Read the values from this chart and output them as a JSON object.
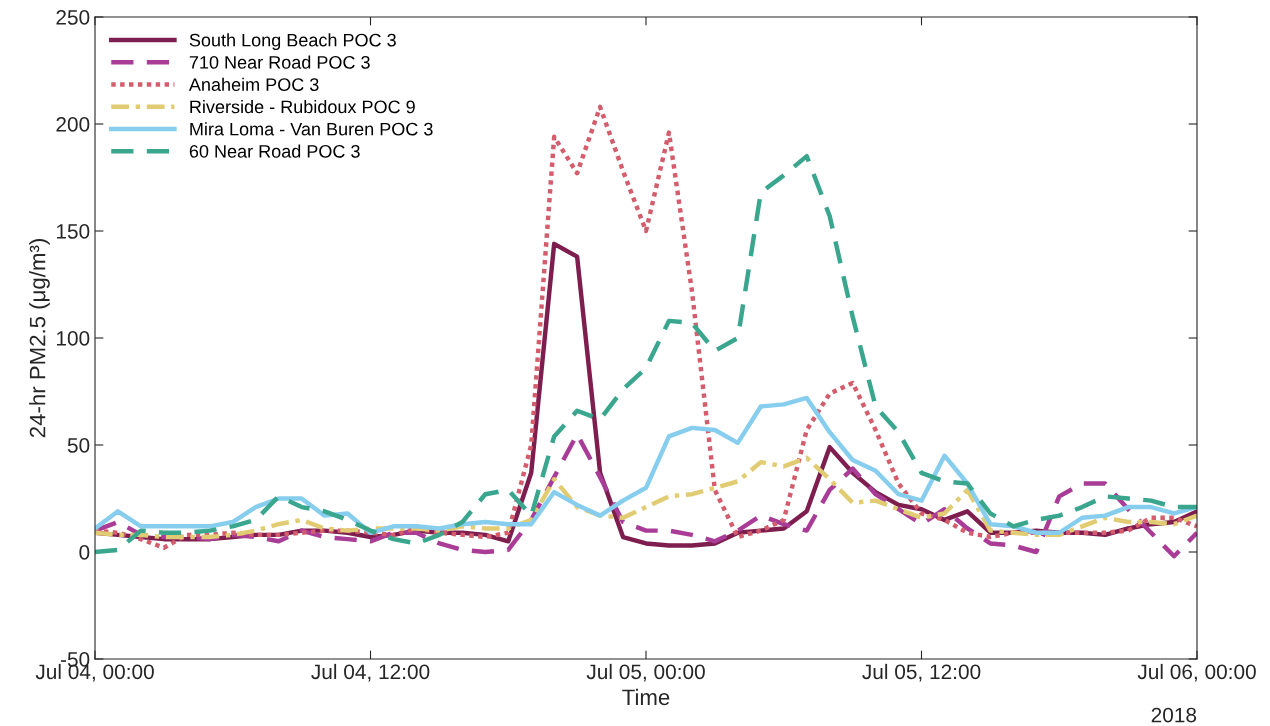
{
  "chart_data": {
    "type": "line",
    "xlabel": "Time",
    "ylabel": "24-hr PM2.5 (μg/m³)",
    "x": [
      "2018-07-04T00:00",
      "2018-07-04T01:00",
      "2018-07-04T02:00",
      "2018-07-04T03:00",
      "2018-07-04T04:00",
      "2018-07-04T05:00",
      "2018-07-04T06:00",
      "2018-07-04T07:00",
      "2018-07-04T08:00",
      "2018-07-04T09:00",
      "2018-07-04T10:00",
      "2018-07-04T11:00",
      "2018-07-04T12:00",
      "2018-07-04T13:00",
      "2018-07-04T14:00",
      "2018-07-04T15:00",
      "2018-07-04T16:00",
      "2018-07-04T17:00",
      "2018-07-04T18:00",
      "2018-07-04T19:00",
      "2018-07-04T20:00",
      "2018-07-04T21:00",
      "2018-07-04T22:00",
      "2018-07-04T23:00",
      "2018-07-05T00:00",
      "2018-07-05T01:00",
      "2018-07-05T02:00",
      "2018-07-05T03:00",
      "2018-07-05T04:00",
      "2018-07-05T05:00",
      "2018-07-05T06:00",
      "2018-07-05T07:00",
      "2018-07-05T08:00",
      "2018-07-05T09:00",
      "2018-07-05T10:00",
      "2018-07-05T11:00",
      "2018-07-05T12:00",
      "2018-07-05T13:00",
      "2018-07-05T14:00",
      "2018-07-05T15:00",
      "2018-07-05T16:00",
      "2018-07-05T17:00",
      "2018-07-05T18:00",
      "2018-07-05T19:00",
      "2018-07-05T20:00",
      "2018-07-05T21:00",
      "2018-07-05T22:00",
      "2018-07-05T23:00",
      "2018-07-06T00:00"
    ],
    "series": [
      {
        "name": "South Long Beach POC 3",
        "color": "#7e1e4f",
        "line_style": "solid",
        "values": [
          9,
          8,
          7,
          6,
          6,
          6,
          7,
          8,
          8,
          10,
          10,
          9,
          7,
          8,
          10,
          9,
          9,
          8,
          5,
          37,
          144,
          138,
          37,
          7,
          4,
          3,
          3,
          4,
          9,
          10,
          11,
          19,
          49,
          37,
          28,
          22,
          20,
          15,
          19,
          9,
          9,
          10,
          9,
          9,
          8,
          11,
          13,
          14,
          19
        ]
      },
      {
        "name": "710 Near Road POC 3",
        "color": "#a83c96",
        "line_style": "dashed",
        "values": [
          10,
          14,
          8,
          7,
          7,
          6,
          8,
          7,
          5,
          10,
          7,
          6,
          5,
          9,
          9,
          4,
          1,
          0,
          1,
          15,
          35,
          55,
          35,
          14,
          10,
          10,
          8,
          5,
          10,
          17,
          13,
          10,
          29,
          39,
          27,
          20,
          13,
          20,
          11,
          4,
          3,
          0,
          26,
          32,
          32,
          20,
          9,
          -2,
          9
        ]
      },
      {
        "name": "Anaheim POC 3",
        "color": "#d45d6d",
        "line_style": "dotted",
        "values": [
          10,
          9,
          6,
          2,
          8,
          8,
          9,
          8,
          8,
          9,
          10,
          10,
          9,
          8,
          11,
          9,
          8,
          7,
          9,
          50,
          194,
          177,
          208,
          178,
          150,
          196,
          122,
          29,
          7,
          10,
          15,
          57,
          74,
          79,
          57,
          32,
          18,
          15,
          9,
          7,
          9,
          9,
          9,
          9,
          9,
          10,
          16,
          16,
          12
        ]
      },
      {
        "name": "Riverside - Rubidoux POC 9",
        "color": "#e2cc73",
        "line_style": "dashdot",
        "values": [
          9,
          8,
          8,
          7,
          7,
          7,
          8,
          10,
          13,
          15,
          11,
          10,
          11,
          11,
          11,
          10,
          12,
          11,
          11,
          15,
          34,
          21,
          17,
          16,
          21,
          26,
          27,
          30,
          33,
          42,
          40,
          44,
          34,
          23,
          24,
          20,
          16,
          18,
          29,
          10,
          9,
          8,
          8,
          12,
          16,
          14,
          14,
          13,
          17
        ]
      },
      {
        "name": "Mira Loma - Van Buren POC 3",
        "color": "#86cdee",
        "line_style": "solid",
        "values": [
          11,
          19,
          12,
          12,
          12,
          12,
          14,
          21,
          25,
          25,
          17,
          18,
          9,
          12,
          12,
          11,
          13,
          14,
          13,
          13,
          28,
          22,
          17,
          24,
          30,
          54,
          58,
          57,
          51,
          68,
          69,
          72,
          56,
          43,
          38,
          27,
          24,
          45,
          32,
          13,
          12,
          9,
          9,
          16,
          17,
          21,
          21,
          18,
          21
        ]
      },
      {
        "name": "60 Near Road POC 3",
        "color": "#3aa68e",
        "line_style": "dashed",
        "values": [
          0,
          1,
          10,
          9,
          9,
          10,
          12,
          15,
          26,
          21,
          19,
          15,
          10,
          6,
          4,
          8,
          14,
          27,
          29,
          17,
          54,
          66,
          62,
          76,
          86,
          108,
          107,
          94,
          100,
          168,
          176,
          185,
          157,
          110,
          68,
          56,
          37,
          33,
          32,
          18,
          12,
          15,
          17,
          21,
          26,
          25,
          24,
          21,
          21
        ]
      }
    ],
    "xlim": [
      "2018-07-04T00:00",
      "2018-07-06T00:00"
    ],
    "xticks": [
      {
        "value": "2018-07-04T00:00",
        "label": "Jul 04, 00:00"
      },
      {
        "value": "2018-07-04T12:00",
        "label": "Jul 04, 12:00"
      },
      {
        "value": "2018-07-05T00:00",
        "label": "Jul 05, 00:00"
      },
      {
        "value": "2018-07-05T12:00",
        "label": "Jul 05, 12:00"
      },
      {
        "value": "2018-07-06T00:00",
        "label": "Jul 06, 00:00"
      }
    ],
    "ylim": [
      -50,
      250
    ],
    "yticks": [
      -50,
      0,
      50,
      100,
      150,
      200,
      250
    ],
    "annotations": [
      "2018"
    ],
    "legend": "top left",
    "grid": false,
    "marker": "none"
  }
}
